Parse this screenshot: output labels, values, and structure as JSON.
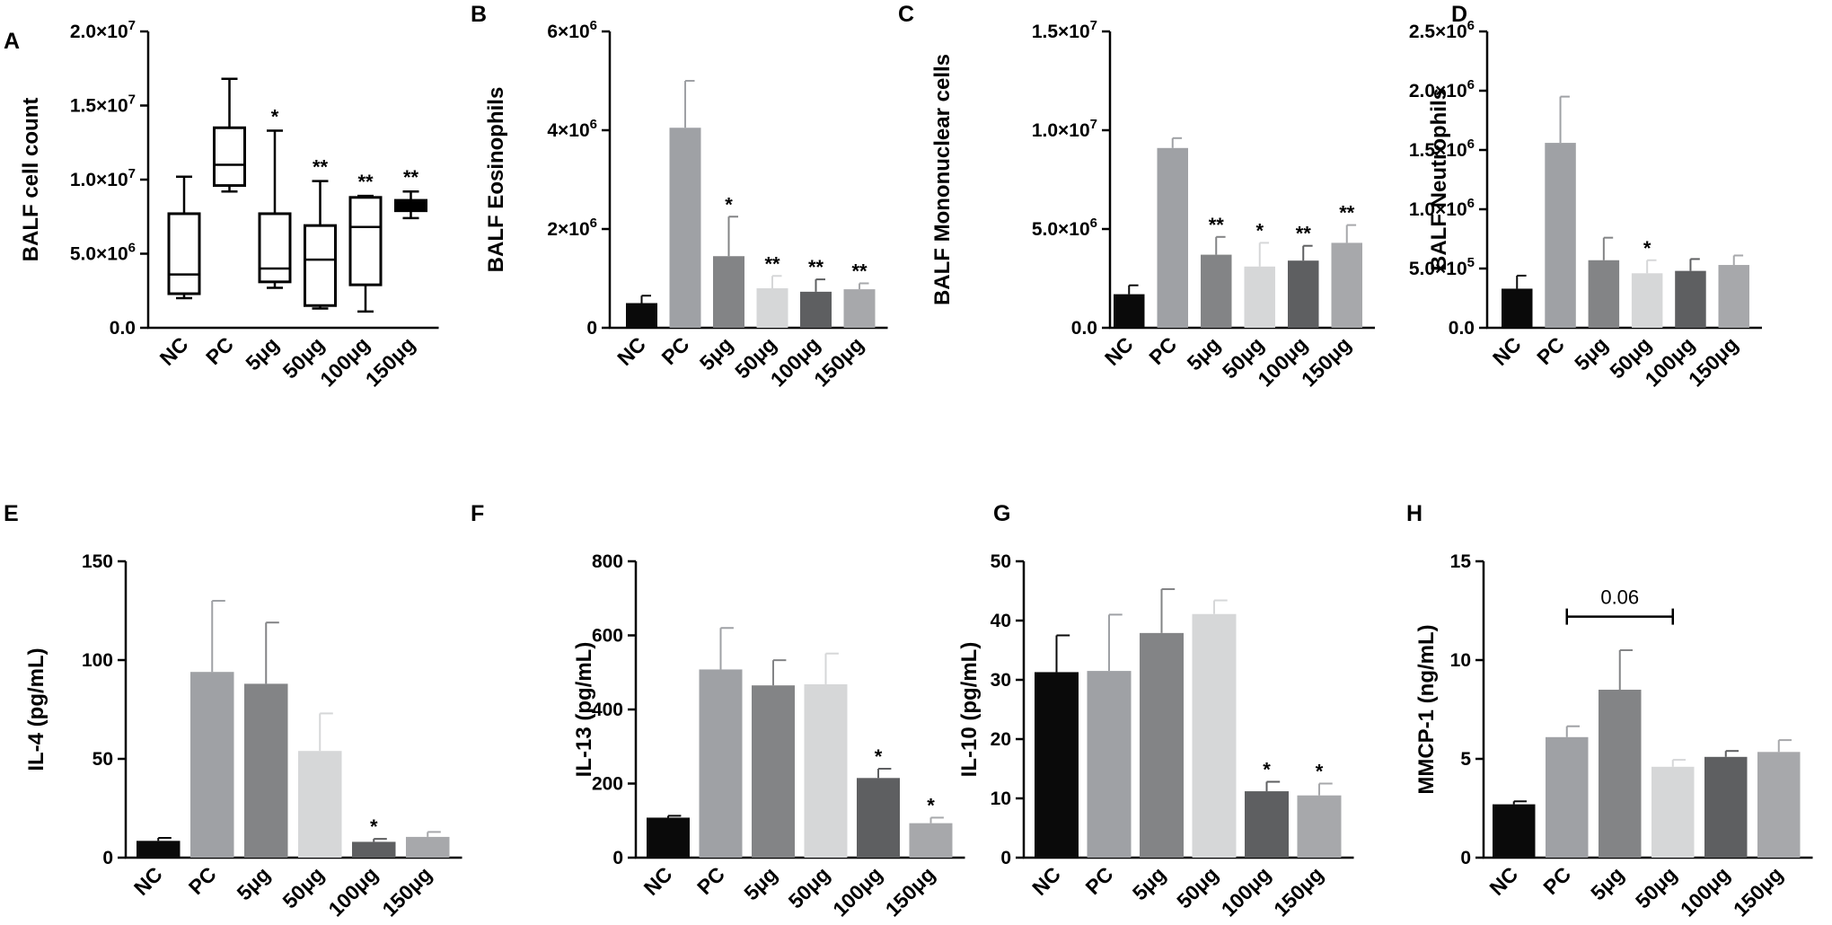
{
  "chart_data": [
    {
      "panel": "A",
      "type": "box",
      "ylabel": "BALF cell count",
      "categories": [
        "NC",
        "PC",
        "5μg",
        "50μg",
        "100μg",
        "150μg"
      ],
      "yticks": [
        0,
        5000000,
        10000000,
        15000000,
        20000000
      ],
      "ytick_labels": [
        "0.0",
        "5.0×10^6",
        "1.0×10^7",
        "1.5×10^7",
        "2.0×10^7"
      ],
      "ylim": [
        0,
        20000000
      ],
      "boxes": [
        {
          "min": 2000000,
          "q1": 2300000,
          "median": 3600000,
          "q3": 7700000,
          "max": 10200000,
          "color": "#ffffff"
        },
        {
          "min": 9200000,
          "q1": 9600000,
          "median": 11000000,
          "q3": 13500000,
          "max": 16800000,
          "color": "#ffffff"
        },
        {
          "min": 2700000,
          "q1": 3100000,
          "median": 4000000,
          "q3": 7700000,
          "max": 13300000,
          "color": "#ffffff"
        },
        {
          "min": 1300000,
          "q1": 1500000,
          "median": 4600000,
          "q3": 6900000,
          "max": 9900000,
          "color": "#ffffff"
        },
        {
          "min": 1100000,
          "q1": 2900000,
          "median": 6800000,
          "q3": 8800000,
          "max": 8900000,
          "color": "#ffffff"
        },
        {
          "min": 7400000,
          "q1": 7900000,
          "median": 8200000,
          "q3": 8600000,
          "max": 9200000,
          "color": "#000000"
        }
      ],
      "significance": [
        "",
        "",
        "*",
        "**",
        "**",
        "**"
      ]
    },
    {
      "panel": "B",
      "type": "bar",
      "ylabel": "BALF Eosinophils",
      "categories": [
        "NC",
        "PC",
        "5μg",
        "50μg",
        "100μg",
        "150μg"
      ],
      "values": [
        500000,
        4050000,
        1450000,
        800000,
        730000,
        780000
      ],
      "errors": [
        150000,
        950000,
        800000,
        250000,
        250000,
        120000
      ],
      "colors": [
        "#0a0a0a",
        "#9fa1a5",
        "#838486",
        "#d6d7d8",
        "#5e5f61",
        "#a7a8ab"
      ],
      "yticks": [
        0,
        2000000,
        4000000,
        6000000
      ],
      "ytick_labels": [
        "0",
        "2×10^6",
        "4×10^6",
        "6×10^6"
      ],
      "ylim": [
        0,
        6000000
      ],
      "significance": [
        "",
        "",
        "*",
        "**",
        "**",
        "**"
      ]
    },
    {
      "panel": "C",
      "type": "bar",
      "ylabel": "BALF Mononuclear cells",
      "categories": [
        "NC",
        "PC",
        "5μg",
        "50μg",
        "100μg",
        "150μg"
      ],
      "values": [
        1700000,
        9100000,
        3700000,
        3100000,
        3400000,
        4300000
      ],
      "errors": [
        450000,
        500000,
        900000,
        1200000,
        750000,
        900000
      ],
      "colors": [
        "#0a0a0a",
        "#9fa1a5",
        "#838486",
        "#d6d7d8",
        "#5e5f61",
        "#a7a8ab"
      ],
      "yticks": [
        0,
        5000000,
        10000000,
        15000000
      ],
      "ytick_labels": [
        "0.0",
        "5.0×10^6",
        "1.0×10^7",
        "1.5×10^7"
      ],
      "ylim": [
        0,
        15000000
      ],
      "significance": [
        "",
        "",
        "**",
        "*",
        "**",
        "**"
      ]
    },
    {
      "panel": "D",
      "type": "bar",
      "ylabel": "BALF Neutrophils",
      "categories": [
        "NC",
        "PC",
        "5μg",
        "50μg",
        "100μg",
        "150μg"
      ],
      "values": [
        330000,
        1560000,
        570000,
        460000,
        480000,
        530000
      ],
      "errors": [
        110000,
        390000,
        190000,
        110000,
        100000,
        80000
      ],
      "colors": [
        "#0a0a0a",
        "#9fa1a5",
        "#838486",
        "#d6d7d8",
        "#5e5f61",
        "#a7a8ab"
      ],
      "yticks": [
        0,
        500000,
        1000000,
        1500000,
        2000000,
        2500000
      ],
      "ytick_labels": [
        "0.0",
        "5.0×10^5",
        "1.0×10^6",
        "1.5×10^6",
        "2.0×10^6",
        "2.5×10^6"
      ],
      "ylim": [
        0,
        2500000
      ],
      "significance": [
        "",
        "",
        "",
        "*",
        "",
        ""
      ]
    },
    {
      "panel": "E",
      "type": "bar",
      "ylabel": "IL-4 (pg/mL)",
      "categories": [
        "NC",
        "PC",
        "5μg",
        "50μg",
        "100μg",
        "150μg"
      ],
      "values": [
        8.5,
        94,
        88,
        54,
        8,
        10.5
      ],
      "errors": [
        1.5,
        36,
        31,
        19,
        1.5,
        2.5
      ],
      "colors": [
        "#0a0a0a",
        "#9fa1a5",
        "#838486",
        "#d6d7d8",
        "#5e5f61",
        "#a7a8ab"
      ],
      "yticks": [
        0,
        50,
        100,
        150
      ],
      "ytick_labels": [
        "0",
        "50",
        "100",
        "150"
      ],
      "ylim": [
        0,
        150
      ],
      "significance": [
        "",
        "",
        "",
        "",
        "*",
        ""
      ]
    },
    {
      "panel": "F",
      "type": "bar",
      "ylabel": "IL-13 (pg/mL)",
      "categories": [
        "NC",
        "PC",
        "5μg",
        "50μg",
        "100μg",
        "150μg"
      ],
      "values": [
        108,
        508,
        465,
        468,
        215,
        93
      ],
      "errors": [
        5,
        112,
        68,
        83,
        25,
        15
      ],
      "colors": [
        "#0a0a0a",
        "#9fa1a5",
        "#838486",
        "#d6d7d8",
        "#5e5f61",
        "#a7a8ab"
      ],
      "yticks": [
        0,
        200,
        400,
        600,
        800
      ],
      "ytick_labels": [
        "0",
        "200",
        "400",
        "600",
        "800"
      ],
      "ylim": [
        0,
        800
      ],
      "significance": [
        "",
        "",
        "",
        "",
        "*",
        "*"
      ]
    },
    {
      "panel": "G",
      "type": "bar",
      "ylabel": "IL-10 (pg/mL)",
      "categories": [
        "NC",
        "PC",
        "5μg",
        "50μg",
        "100μg",
        "150μg"
      ],
      "values": [
        31.3,
        31.5,
        37.9,
        41.1,
        11.2,
        10.5
      ],
      "errors": [
        6.2,
        9.5,
        7.4,
        2.3,
        1.6,
        2
      ],
      "colors": [
        "#0a0a0a",
        "#9fa1a5",
        "#838486",
        "#d6d7d8",
        "#5e5f61",
        "#a7a8ab"
      ],
      "yticks": [
        0,
        10,
        20,
        30,
        40,
        50
      ],
      "ytick_labels": [
        "0",
        "10",
        "20",
        "30",
        "40",
        "50"
      ],
      "ylim": [
        0,
        50
      ],
      "significance": [
        "",
        "",
        "",
        "",
        "*",
        "*"
      ]
    },
    {
      "panel": "H",
      "type": "bar",
      "ylabel": "MMCP-1 (ng/mL)",
      "categories": [
        "NC",
        "PC",
        "5μg",
        "50μg",
        "100μg",
        "150μg"
      ],
      "values": [
        2.7,
        6.1,
        8.5,
        4.6,
        5.1,
        5.35
      ],
      "errors": [
        0.15,
        0.55,
        2,
        0.35,
        0.3,
        0.6
      ],
      "colors": [
        "#0a0a0a",
        "#9fa1a5",
        "#838486",
        "#d6d7d8",
        "#5e5f61",
        "#a7a8ab"
      ],
      "yticks": [
        0,
        5,
        10,
        15
      ],
      "ytick_labels": [
        "0",
        "5",
        "10",
        "15"
      ],
      "ylim": [
        0,
        15
      ],
      "significance": [
        "",
        "",
        "",
        "",
        "",
        ""
      ],
      "bracket": {
        "from": 1,
        "to": 3,
        "value": 12.2,
        "label": "0.06"
      }
    }
  ]
}
